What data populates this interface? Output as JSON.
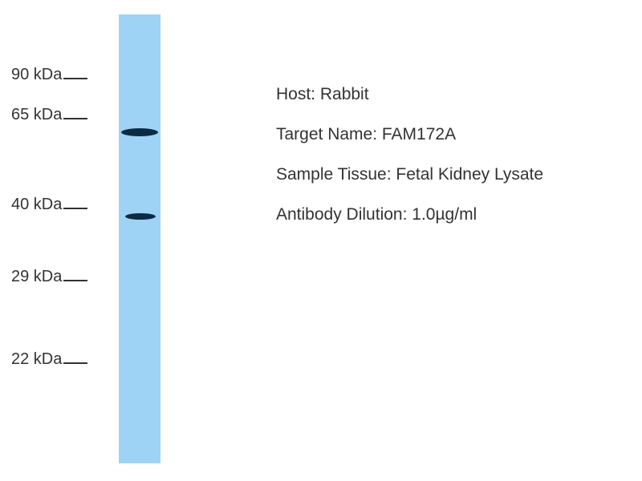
{
  "blot": {
    "lane_color": "#9fd3f5",
    "band_color": "#0d2a44",
    "markers": [
      "90 kDa",
      "65 kDa",
      "40 kDa",
      "29 kDa",
      "22 kDa"
    ]
  },
  "info": {
    "host": "Host: Rabbit",
    "target": "Target Name: FAM172A",
    "tissue": "Sample Tissue: Fetal Kidney Lysate",
    "dilution": "Antibody Dilution: 1.0µg/ml"
  }
}
